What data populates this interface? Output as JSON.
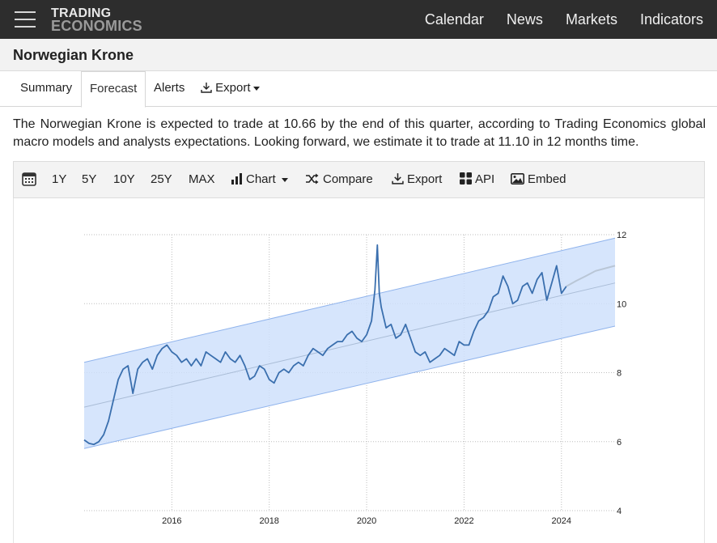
{
  "header": {
    "logo_line1": "TRADING",
    "logo_line2": "ECONOMICS",
    "nav": [
      "Calendar",
      "News",
      "Markets",
      "Indicators"
    ]
  },
  "page_title": "Norwegian Krone",
  "tabs": [
    {
      "label": "Summary",
      "active": false
    },
    {
      "label": "Forecast",
      "active": true
    },
    {
      "label": "Alerts",
      "active": false
    },
    {
      "label": "Export",
      "active": false,
      "icon": "download-icon",
      "dropdown": true
    }
  ],
  "description": "The Norwegian Krone is expected to trade at 10.66 by the end of this quarter, according to Trading Economics global macro models and analysts expectations. Looking forward, we estimate it to trade at 11.10 in 12 months time.",
  "toolbar": {
    "calendar_icon": "calendar-icon",
    "ranges": [
      "1Y",
      "5Y",
      "10Y",
      "25Y",
      "MAX"
    ],
    "chart_label": "Chart",
    "compare_label": "Compare",
    "export_label": "Export",
    "api_label": "API",
    "embed_label": "Embed"
  },
  "chart_data": {
    "type": "line",
    "title": "",
    "xlabel": "",
    "ylabel": "",
    "x_ticks": [
      "2016",
      "2018",
      "2020",
      "2022",
      "2024"
    ],
    "y_ticks": [
      4,
      6,
      8,
      10,
      12
    ],
    "xlim": [
      2014.2,
      2025.1
    ],
    "ylim": [
      4,
      12
    ],
    "grid": true,
    "y_axis_side": "right",
    "colors": {
      "line": "#3a6fae",
      "band": "#cfe0fb",
      "band_edge": "#8fb3ec",
      "trend": "#a9bcd6",
      "forecast": "#b9c6d6"
    },
    "series": [
      {
        "name": "",
        "role": "history",
        "x": [
          2014.2,
          2014.3,
          2014.4,
          2014.5,
          2014.6,
          2014.7,
          2014.8,
          2014.9,
          2015.0,
          2015.1,
          2015.2,
          2015.3,
          2015.4,
          2015.5,
          2015.6,
          2015.7,
          2015.8,
          2015.9,
          2016.0,
          2016.1,
          2016.2,
          2016.3,
          2016.4,
          2016.5,
          2016.6,
          2016.7,
          2016.8,
          2016.9,
          2017.0,
          2017.1,
          2017.2,
          2017.3,
          2017.4,
          2017.5,
          2017.6,
          2017.7,
          2017.8,
          2017.9,
          2018.0,
          2018.1,
          2018.2,
          2018.3,
          2018.4,
          2018.5,
          2018.6,
          2018.7,
          2018.8,
          2018.9,
          2019.0,
          2019.1,
          2019.2,
          2019.3,
          2019.4,
          2019.5,
          2019.6,
          2019.7,
          2019.8,
          2019.9,
          2020.0,
          2020.1,
          2020.17,
          2020.22,
          2020.26,
          2020.3,
          2020.4,
          2020.5,
          2020.6,
          2020.7,
          2020.8,
          2020.9,
          2021.0,
          2021.1,
          2021.2,
          2021.3,
          2021.4,
          2021.5,
          2021.6,
          2021.7,
          2021.8,
          2021.9,
          2022.0,
          2022.1,
          2022.2,
          2022.3,
          2022.4,
          2022.5,
          2022.6,
          2022.7,
          2022.8,
          2022.9,
          2023.0,
          2023.1,
          2023.2,
          2023.3,
          2023.4,
          2023.5,
          2023.6,
          2023.7,
          2023.8,
          2023.9,
          2024.0,
          2024.1
        ],
        "y": [
          6.05,
          5.95,
          5.92,
          6.0,
          6.2,
          6.6,
          7.2,
          7.8,
          8.1,
          8.2,
          7.4,
          8.1,
          8.3,
          8.4,
          8.1,
          8.5,
          8.7,
          8.8,
          8.6,
          8.5,
          8.3,
          8.4,
          8.2,
          8.4,
          8.2,
          8.6,
          8.5,
          8.4,
          8.3,
          8.6,
          8.4,
          8.3,
          8.5,
          8.2,
          7.8,
          7.9,
          8.2,
          8.1,
          7.8,
          7.7,
          8.0,
          8.1,
          8.0,
          8.2,
          8.3,
          8.2,
          8.5,
          8.7,
          8.6,
          8.5,
          8.7,
          8.8,
          8.9,
          8.9,
          9.1,
          9.2,
          9.0,
          8.9,
          9.1,
          9.5,
          10.4,
          11.7,
          10.3,
          9.9,
          9.3,
          9.4,
          9.0,
          9.1,
          9.4,
          9.0,
          8.6,
          8.5,
          8.6,
          8.3,
          8.4,
          8.5,
          8.7,
          8.6,
          8.5,
          8.9,
          8.8,
          8.8,
          9.2,
          9.5,
          9.6,
          9.8,
          10.2,
          10.3,
          10.8,
          10.5,
          10.0,
          10.1,
          10.5,
          10.6,
          10.3,
          10.7,
          10.9,
          10.1,
          10.6,
          11.1,
          10.3,
          10.5
        ]
      },
      {
        "name": "",
        "role": "forecast",
        "x": [
          2024.1,
          2024.3,
          2024.5,
          2024.7,
          2025.1
        ],
        "y": [
          10.5,
          10.66,
          10.8,
          10.95,
          11.1
        ]
      }
    ],
    "trend": {
      "x": [
        2014.2,
        2025.1
      ],
      "y": [
        7.0,
        10.6
      ]
    },
    "band": {
      "x": [
        2014.2,
        2025.1
      ],
      "lower": [
        5.8,
        9.35
      ],
      "upper": [
        8.3,
        11.9
      ]
    }
  }
}
